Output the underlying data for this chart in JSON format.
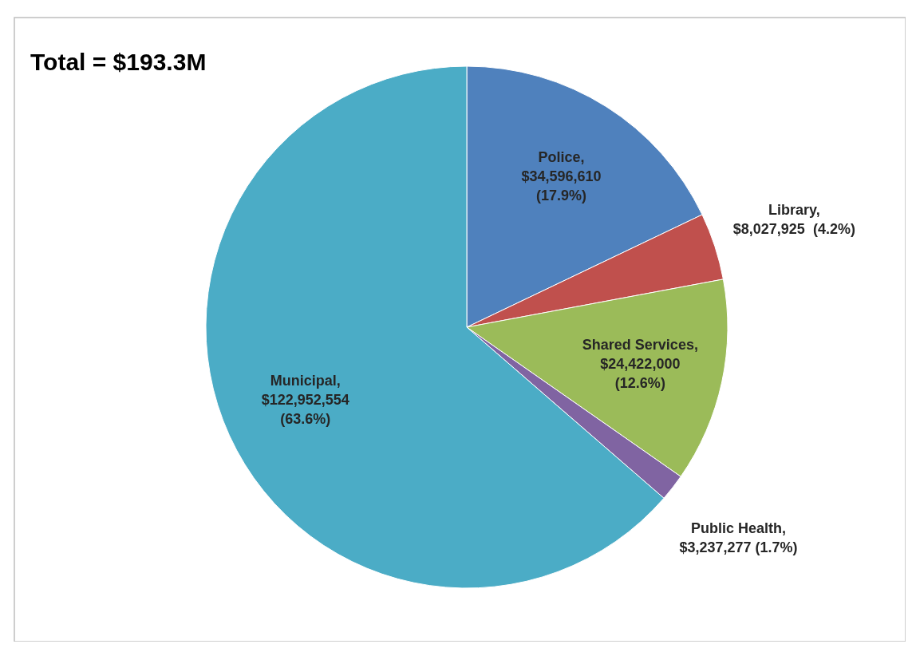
{
  "chart_data": {
    "type": "pie",
    "title": "Total = $193.3M",
    "categories": [
      "Police",
      "Library",
      "Shared Services",
      "Public Health",
      "Municipal"
    ],
    "values": [
      34596610,
      8027925,
      24422000,
      3237277,
      122952554
    ],
    "colors": [
      "#4f81bd",
      "#c0504d",
      "#9bbb59",
      "#8064a2",
      "#4bacc6"
    ],
    "value_labels": [
      ",\n$34,596,610\n(17.9%)",
      ",\n$8,027,925  (4.2%)",
      ",\n$24,422,000\n(12.6%)",
      ",\n$3,237,277 (1.7%)",
      ",\n$122,952,554\n(63.6%)"
    ],
    "legend": false
  }
}
